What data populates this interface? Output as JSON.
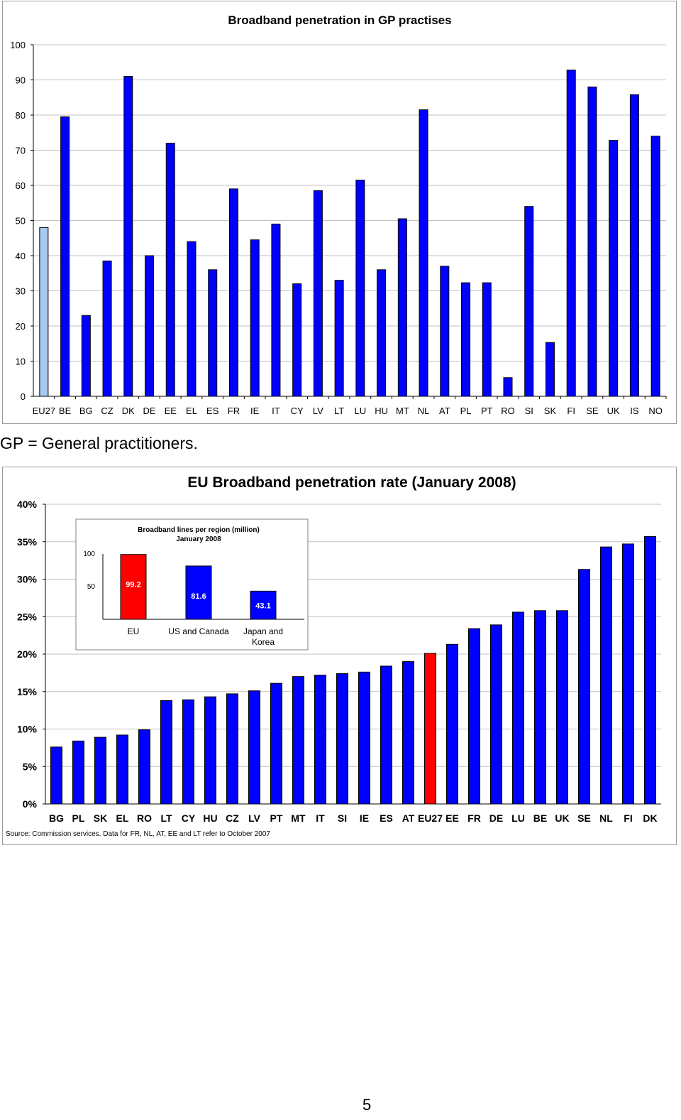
{
  "caption": "GP = General practitioners.",
  "page_number": "5",
  "colors": {
    "bar": "#0000FF",
    "bar_highlight_light": "#A6CAF0",
    "bar_highlight_red": "#FF0000",
    "grid": "#C0C0C0"
  },
  "chart_data": [
    {
      "type": "bar",
      "title": "Broadband penetration in GP practises",
      "xlabel": "",
      "ylabel": "",
      "ylim": [
        0,
        100
      ],
      "yticks": [
        "0",
        "10",
        "20",
        "30",
        "40",
        "50",
        "60",
        "70",
        "80",
        "90",
        "100"
      ],
      "grid": true,
      "categories": [
        "EU27",
        "BE",
        "BG",
        "CZ",
        "DK",
        "DE",
        "EE",
        "EL",
        "ES",
        "FR",
        "IE",
        "IT",
        "CY",
        "LV",
        "LT",
        "LU",
        "HU",
        "MT",
        "NL",
        "AT",
        "PL",
        "PT",
        "RO",
        "SI",
        "SK",
        "FI",
        "SE",
        "UK",
        "IS",
        "NO"
      ],
      "values": [
        48,
        79.5,
        23,
        38.5,
        91,
        40,
        72,
        44,
        36,
        59,
        44.5,
        49,
        32,
        58.5,
        33,
        61.5,
        36,
        50.5,
        81.5,
        37,
        32.3,
        32.3,
        5.3,
        54,
        15.3,
        92.8,
        88,
        72.8,
        85.8,
        74
      ],
      "highlight": "EU27"
    },
    {
      "type": "bar",
      "title": "EU Broadband penetration rate (January 2008)",
      "xlabel": "",
      "ylabel": "",
      "ylim": [
        0,
        40
      ],
      "yticks": [
        "0%",
        "5%",
        "10%",
        "15%",
        "20%",
        "25%",
        "30%",
        "35%",
        "40%"
      ],
      "grid": true,
      "categories": [
        "BG",
        "PL",
        "SK",
        "EL",
        "RO",
        "LT",
        "CY",
        "HU",
        "CZ",
        "LV",
        "PT",
        "MT",
        "IT",
        "SI",
        "IE",
        "ES",
        "AT",
        "EU27",
        "EE",
        "FR",
        "DE",
        "LU",
        "BE",
        "UK",
        "SE",
        "NL",
        "FI",
        "DK"
      ],
      "values": [
        7.6,
        8.4,
        8.9,
        9.2,
        9.9,
        13.8,
        13.9,
        14.3,
        14.7,
        15.1,
        16.1,
        17.0,
        17.2,
        17.4,
        17.6,
        18.4,
        19.0,
        20.1,
        21.3,
        23.4,
        23.9,
        25.6,
        25.8,
        25.8,
        31.3,
        34.3,
        34.7,
        35.7
      ],
      "highlight": "EU27",
      "source_note": "Source: Commission services. Data for FR, NL, AT, EE and LT refer to October 2007"
    },
    {
      "type": "bar",
      "title": "Broadband lines per region (million)",
      "subtitle": "January 2008",
      "ylim": [
        0,
        100
      ],
      "yticks": [
        "50",
        "100"
      ],
      "categories": [
        "EU",
        "US and Canada",
        "Japan and Korea"
      ],
      "values": [
        99.2,
        81.6,
        43.1
      ],
      "value_labels": [
        "99.2",
        "81.6",
        "43.1"
      ],
      "colors": [
        "#FF0000",
        "#0000FF",
        "#0000FF"
      ]
    }
  ]
}
